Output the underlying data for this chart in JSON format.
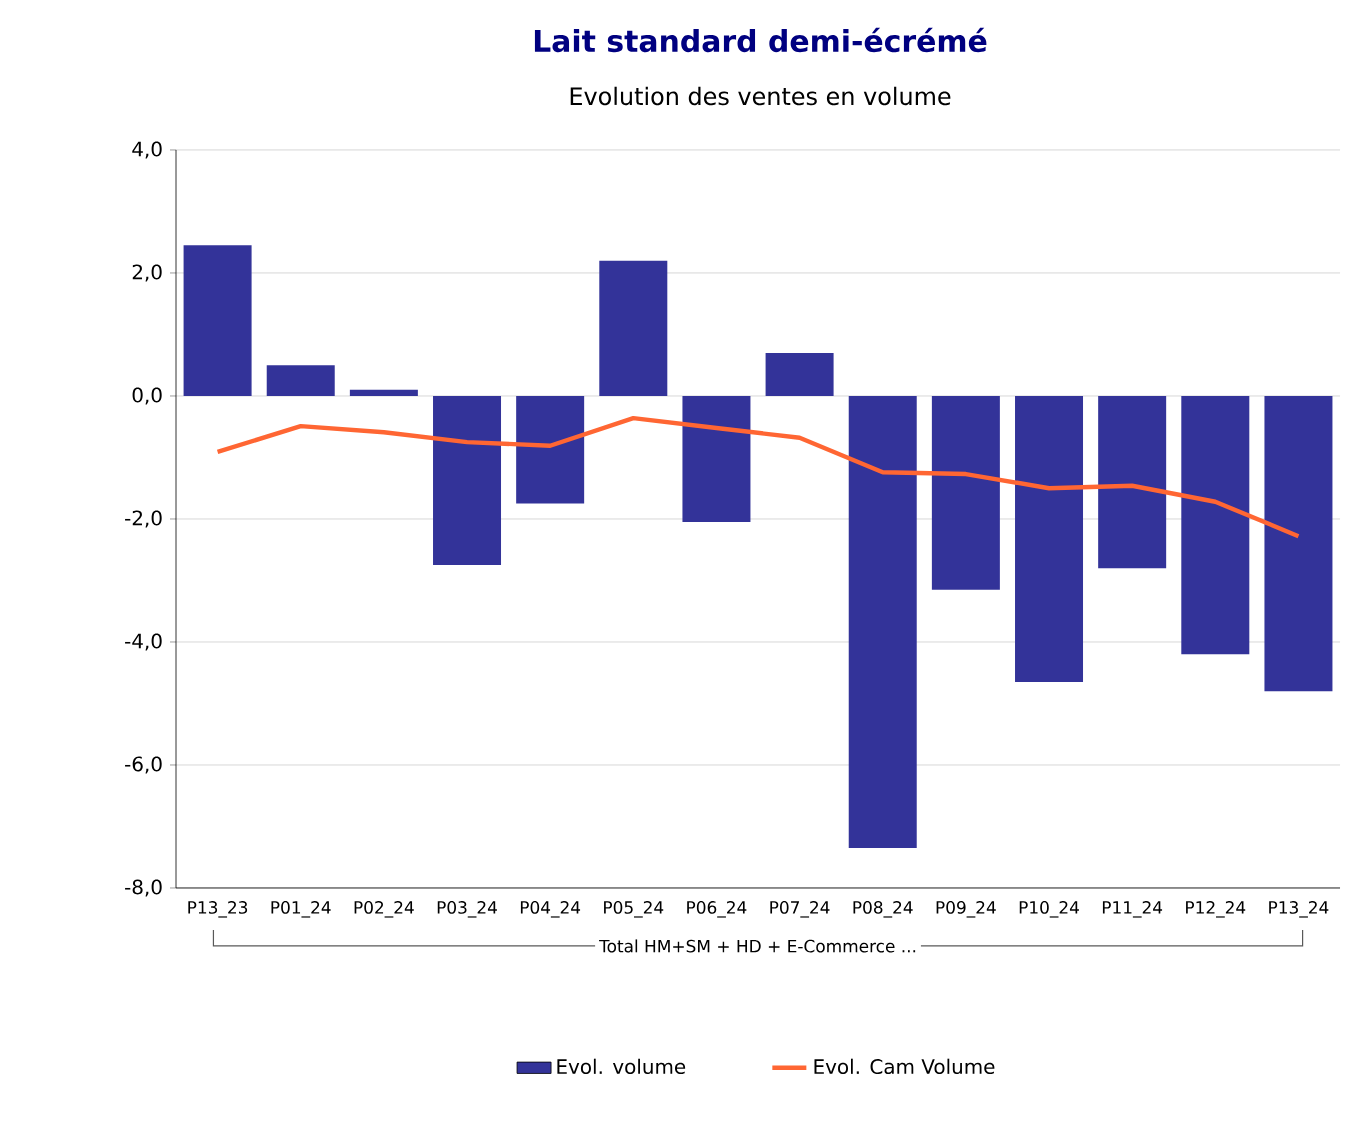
{
  "chart_data": {
    "type": "bar",
    "title": "Lait standard demi-écrémé",
    "subtitle": "Evolution des ventes en volume",
    "xlabel": "Total HM+SM + HD + E-Commerce ...",
    "categories": [
      "P13_23",
      "P01_24",
      "P02_24",
      "P03_24",
      "P04_24",
      "P05_24",
      "P06_24",
      "P07_24",
      "P08_24",
      "P09_24",
      "P10_24",
      "P11_24",
      "P12_24",
      "P13_24"
    ],
    "series": [
      {
        "name": "Evol. volume",
        "color": "#333399",
        "values": [
          2.45,
          0.5,
          0.1,
          -2.75,
          -1.75,
          2.2,
          -2.05,
          0.7,
          -7.35,
          -3.15,
          -4.65,
          -2.8,
          -4.2,
          -4.8
        ]
      },
      {
        "name": "Evol. Cam Volume",
        "type": "line",
        "color": "#ff6633",
        "values": [
          -0.91,
          -0.49,
          -0.59,
          -0.75,
          -0.81,
          -0.36,
          -0.52,
          -0.68,
          -1.24,
          -1.27,
          -1.5,
          -1.46,
          -1.72,
          -2.28
        ]
      }
    ],
    "ylim": [
      -8,
      4
    ],
    "yticks": [
      {
        "value": -8,
        "label": "-8,0"
      },
      {
        "value": -6,
        "label": "-6,0"
      },
      {
        "value": -4,
        "label": "-4,0"
      },
      {
        "value": -2,
        "label": "-2,0"
      },
      {
        "value": 0,
        "label": "0,0"
      },
      {
        "value": 2,
        "label": "2,0"
      },
      {
        "value": 4,
        "label": "4,0"
      }
    ],
    "grid": "y",
    "legend": "bottom"
  }
}
